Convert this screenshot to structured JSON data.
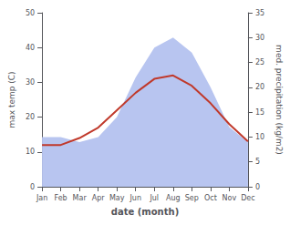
{
  "chart_data": {
    "type": "line",
    "xlabel": "date (month)",
    "ylabel": "max temp (C)",
    "y2label": "med. precipitation (kg/m2)",
    "categories": [
      "Jan",
      "Feb",
      "Mar",
      "Apr",
      "May",
      "Jun",
      "Jul",
      "Aug",
      "Sep",
      "Oct",
      "Nov",
      "Dec"
    ],
    "series": [
      {
        "type": "area",
        "color": "#b8c5f0",
        "axis": "y2",
        "values": [
          10,
          10,
          9,
          10,
          14,
          22,
          28,
          30,
          27,
          20,
          12,
          9
        ]
      },
      {
        "type": "line",
        "color": "#c0392b",
        "values": [
          12,
          12,
          14,
          17,
          22,
          27,
          31,
          32,
          29,
          24,
          18,
          13
        ]
      }
    ],
    "ylim": [
      0,
      50
    ],
    "yticks": [
      0,
      10,
      20,
      30,
      40,
      50
    ],
    "y2lim": [
      0,
      35
    ],
    "y2ticks": [
      0,
      5,
      10,
      15,
      20,
      25,
      30,
      35
    ],
    "grid": false
  }
}
